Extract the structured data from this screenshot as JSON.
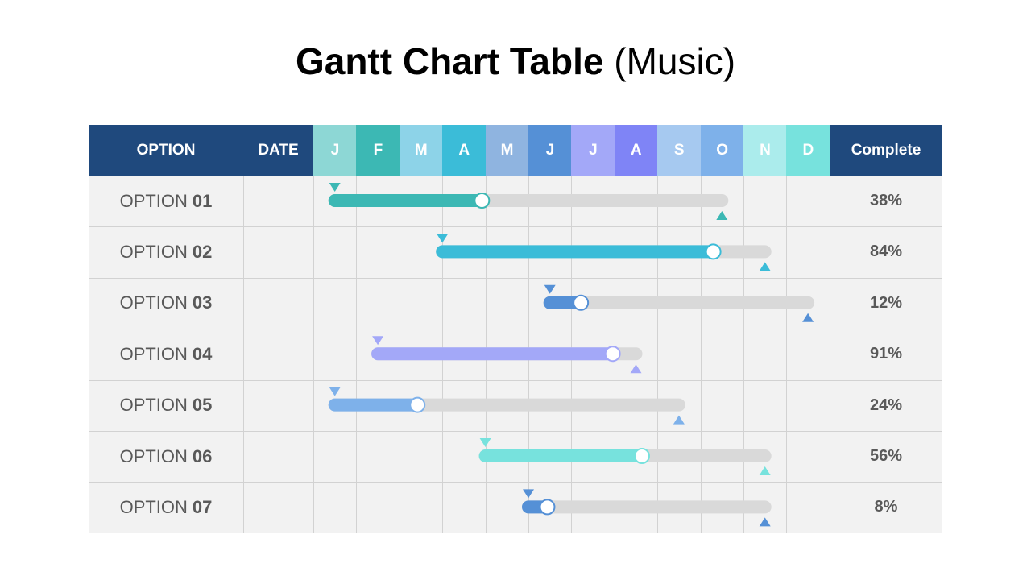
{
  "title": {
    "main": "Gantt Chart Table",
    "sub": "(Music)"
  },
  "header": {
    "option": "OPTION",
    "date": "DATE",
    "complete": "Complete"
  },
  "colors": {
    "header_dark": "#1f497d",
    "track": "#d9d9d9",
    "body_bg": "#f2f2f2",
    "grid": "#d2d2d2",
    "months": [
      "#8dd7d5",
      "#3cb8b4",
      "#8dd3e8",
      "#3bbcd8",
      "#8fb4e0",
      "#5590d6",
      "#a3a8f8",
      "#7f84f6",
      "#a6c9f0",
      "#7eb1ea",
      "#abecec",
      "#77e2dd"
    ]
  },
  "chart_data": {
    "type": "gantt",
    "months": [
      "J",
      "F",
      "M",
      "A",
      "M",
      "J",
      "J",
      "A",
      "S",
      "O",
      "N",
      "D"
    ],
    "tasks": [
      {
        "prefix": "OPTION",
        "number": "01",
        "start": 0.5,
        "end": 9.5,
        "progress": 0.38,
        "complete_label": "38%",
        "color": "#3cb8b4"
      },
      {
        "prefix": "OPTION",
        "number": "02",
        "start": 3.0,
        "end": 10.5,
        "progress": 0.84,
        "complete_label": "84%",
        "color": "#3bbcd8"
      },
      {
        "prefix": "OPTION",
        "number": "03",
        "start": 5.5,
        "end": 11.5,
        "progress": 0.12,
        "complete_label": "12%",
        "color": "#5590d6"
      },
      {
        "prefix": "OPTION",
        "number": "04",
        "start": 1.5,
        "end": 7.5,
        "progress": 0.91,
        "complete_label": "91%",
        "color": "#a3a8f8"
      },
      {
        "prefix": "OPTION",
        "number": "05",
        "start": 0.5,
        "end": 8.5,
        "progress": 0.24,
        "complete_label": "24%",
        "color": "#7eb1ea"
      },
      {
        "prefix": "OPTION",
        "number": "06",
        "start": 4.0,
        "end": 10.5,
        "progress": 0.56,
        "complete_label": "56%",
        "color": "#77e2dd"
      },
      {
        "prefix": "OPTION",
        "number": "07",
        "start": 5.0,
        "end": 10.5,
        "progress": 0.08,
        "complete_label": "8%",
        "color": "#5590d6"
      }
    ]
  }
}
